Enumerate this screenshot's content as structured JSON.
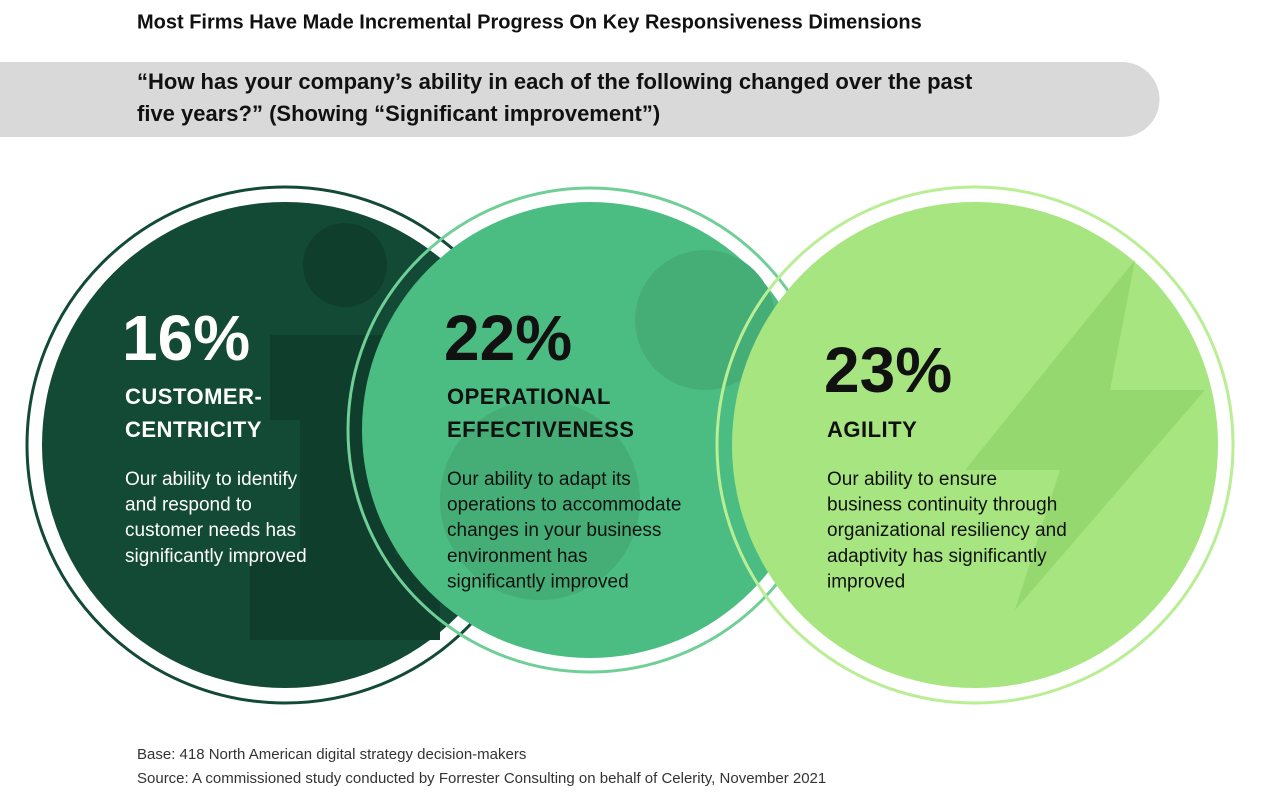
{
  "header": {
    "title": "Most Firms Have Made Incremental Progress On Key Responsiveness Dimensions",
    "question": [
      "“How has your company’s ability in each of the following changed over the past",
      "five years?” (Showing “Significant improvement”)"
    ]
  },
  "items": [
    {
      "value": "16%",
      "name": [
        "CUSTOMER-",
        "CENTRICITY"
      ],
      "description": [
        "Our ability to identify",
        "and respond to",
        "customer needs has",
        "significantly improved"
      ]
    },
    {
      "value": "22%",
      "name": [
        "OPERATIONAL",
        "EFFECTIVENESS"
      ],
      "description": [
        "Our ability to adapt its",
        "operations to accommodate",
        "changes in your business",
        "environment  has",
        "significantly improved"
      ]
    },
    {
      "value": "23%",
      "name": [
        "AGILITY"
      ],
      "description": [
        "Our ability to ensure",
        "business continuity through",
        "organizational resiliency and",
        "adaptivity has significantly",
        "improved"
      ]
    }
  ],
  "footer": {
    "base": "Base: 418 North American digital strategy decision-makers",
    "source": "Source: A commissioned study conducted by Forrester Consulting on behalf of Celerity, November 2021"
  }
}
